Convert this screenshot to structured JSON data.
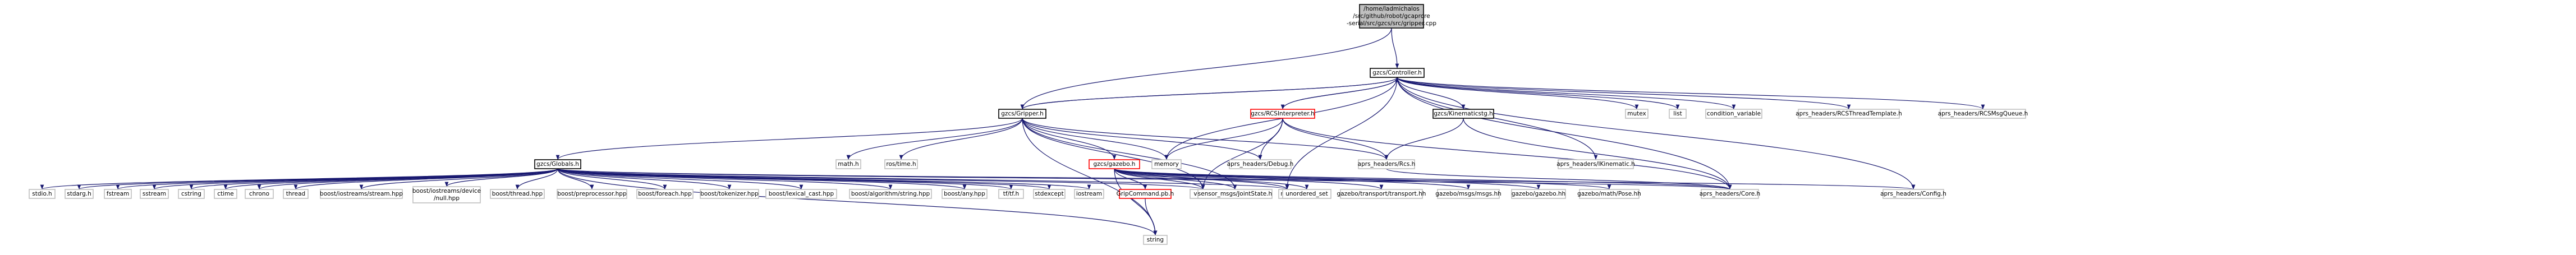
{
  "colors": {
    "edge": "#191970",
    "node_fill": "#ffffff",
    "node_border": "#bfbfbf",
    "root_fill": "#bfbfbf",
    "root_border": "#000000",
    "inner_border": "#000000",
    "missing_border": "#ff0000"
  },
  "nodes": [
    {
      "id": "root",
      "lines": [
        "/home/ladmichalos",
        "/src/github/robot/gcapro­re",
        "-serial/src/gzcs/src/gripper.cpp"
      ],
      "kind": "root"
    },
    {
      "id": "controller",
      "lines": [
        "gzcs/Controller.h"
      ],
      "kind": "inner"
    },
    {
      "id": "gripper",
      "lines": [
        "gzcs/Gripper.h"
      ],
      "kind": "inner"
    },
    {
      "id": "rcsinterpreter",
      "lines": [
        "gzcs/RCSInterpreter.h"
      ],
      "kind": "missing"
    },
    {
      "id": "kinematicsh",
      "lines": [
        "gzcs/Kinematicstg.h"
      ],
      "kind": "inner"
    },
    {
      "id": "mutex",
      "lines": [
        "mutex"
      ],
      "kind": "leaf"
    },
    {
      "id": "list",
      "lines": [
        "list"
      ],
      "kind": "leaf"
    },
    {
      "id": "condvar",
      "lines": [
        "condition_variable"
      ],
      "kind": "leaf"
    },
    {
      "id": "rcsthreadtemplate",
      "lines": [
        "aprs_headers/RCSThreadTemplate.h"
      ],
      "kind": "leaf"
    },
    {
      "id": "rcsmsgqueue",
      "lines": [
        "aprs_headers/RCSMsgQueue.h"
      ],
      "kind": "leaf"
    },
    {
      "id": "globals",
      "lines": [
        "gzcs/Globals.h"
      ],
      "kind": "inner"
    },
    {
      "id": "mathh",
      "lines": [
        "math.h"
      ],
      "kind": "leaf"
    },
    {
      "id": "rostime",
      "lines": [
        "ros/time.h"
      ],
      "kind": "leaf"
    },
    {
      "id": "memory",
      "lines": [
        "memory"
      ],
      "kind": "leaf"
    },
    {
      "id": "debug",
      "lines": [
        "aprs_headers/Debug.h"
      ],
      "kind": "leaf"
    },
    {
      "id": "gzcsgazebo",
      "lines": [
        "gzcs/gazebo.h"
      ],
      "kind": "missing"
    },
    {
      "id": "rcs",
      "lines": [
        "aprs_headers/Rcs.h"
      ],
      "kind": "leaf"
    },
    {
      "id": "ikinematic",
      "lines": [
        "aprs_headers/IKinematic.h"
      ],
      "kind": "leaf"
    },
    {
      "id": "stdio",
      "lines": [
        "stdio.h"
      ],
      "kind": "leaf"
    },
    {
      "id": "stdarg",
      "lines": [
        "stdarg.h"
      ],
      "kind": "leaf"
    },
    {
      "id": "fstream",
      "lines": [
        "fstream"
      ],
      "kind": "leaf"
    },
    {
      "id": "sstream",
      "lines": [
        "sstream"
      ],
      "kind": "leaf"
    },
    {
      "id": "cstring",
      "lines": [
        "cstring"
      ],
      "kind": "leaf"
    },
    {
      "id": "ctime",
      "lines": [
        "ctime"
      ],
      "kind": "leaf"
    },
    {
      "id": "chrono",
      "lines": [
        "chrono"
      ],
      "kind": "leaf"
    },
    {
      "id": "thread",
      "lines": [
        "thread"
      ],
      "kind": "leaf"
    },
    {
      "id": "boostiostreamsstream",
      "lines": [
        "boost/iostreams/stream.hpp"
      ],
      "kind": "leaf"
    },
    {
      "id": "boostiostreamsnull",
      "lines": [
        "boost/iostreams/device",
        "/null.hpp"
      ],
      "kind": "leaf"
    },
    {
      "id": "boostthread",
      "lines": [
        "boost/thread.hpp"
      ],
      "kind": "leaf"
    },
    {
      "id": "boostpreprocessor",
      "lines": [
        "boost/preprocessor.hpp"
      ],
      "kind": "leaf"
    },
    {
      "id": "boostforeach",
      "lines": [
        "boost/foreach.hpp"
      ],
      "kind": "leaf"
    },
    {
      "id": "boosttokenizer",
      "lines": [
        "boost/tokenizer.hpp"
      ],
      "kind": "leaf"
    },
    {
      "id": "boostlexicalcast",
      "lines": [
        "boost/lexical_cast.hpp"
      ],
      "kind": "leaf"
    },
    {
      "id": "boostalgostring",
      "lines": [
        "boost/algorithm/string.hpp"
      ],
      "kind": "leaf"
    },
    {
      "id": "boostany",
      "lines": [
        "boost/any.hpp"
      ],
      "kind": "leaf"
    },
    {
      "id": "tfh",
      "lines": [
        "tf/tf.h"
      ],
      "kind": "leaf"
    },
    {
      "id": "stdexcept",
      "lines": [
        "stdexcept"
      ],
      "kind": "leaf"
    },
    {
      "id": "iostream",
      "lines": [
        "iostream"
      ],
      "kind": "leaf"
    },
    {
      "id": "vector",
      "lines": [
        "vector"
      ],
      "kind": "leaf"
    },
    {
      "id": "sensorjoint",
      "lines": [
        "sensor_msgs/JointState.h"
      ],
      "kind": "leaf"
    },
    {
      "id": "map",
      "lines": [
        "map"
      ],
      "kind": "leaf"
    },
    {
      "id": "gripcommand",
      "lines": [
        "GripCommand.pb.h"
      ],
      "kind": "missing"
    },
    {
      "id": "unorderedset",
      "lines": [
        "unordered_set"
      ],
      "kind": "leaf"
    },
    {
      "id": "gazebotransport",
      "lines": [
        "gazebo/transport/transport.hh"
      ],
      "kind": "leaf"
    },
    {
      "id": "gazebomsgs",
      "lines": [
        "gazebo/msgs/msgs.hh"
      ],
      "kind": "leaf"
    },
    {
      "id": "gazebogazebo",
      "lines": [
        "gazebo/gazebo.hh"
      ],
      "kind": "leaf"
    },
    {
      "id": "gazebopose",
      "lines": [
        "gazebo/math/Pose.hh"
      ],
      "kind": "leaf"
    },
    {
      "id": "core",
      "lines": [
        "aprs_headers/Core.h"
      ],
      "kind": "leaf"
    },
    {
      "id": "config",
      "lines": [
        "aprs_headers/Config.h"
      ],
      "kind": "leaf"
    },
    {
      "id": "string",
      "lines": [
        "string"
      ],
      "kind": "leaf"
    }
  ],
  "edges": [
    [
      "root",
      "controller"
    ],
    [
      "root",
      "gripper"
    ],
    [
      "controller",
      "gripper"
    ],
    [
      "controller",
      "rcsinterpreter"
    ],
    [
      "controller",
      "kinematicsh"
    ],
    [
      "controller",
      "mutex"
    ],
    [
      "controller",
      "list"
    ],
    [
      "controller",
      "condvar"
    ],
    [
      "controller",
      "rcsthreadtemplate"
    ],
    [
      "controller",
      "rcsmsgqueue"
    ],
    [
      "controller",
      "memory"
    ],
    [
      "controller",
      "ikinematic"
    ],
    [
      "controller",
      "core"
    ],
    [
      "controller",
      "config"
    ],
    [
      "controller",
      "map"
    ],
    [
      "gripper",
      "globals"
    ],
    [
      "gripper",
      "mathh"
    ],
    [
      "gripper",
      "rostime"
    ],
    [
      "gripper",
      "memory"
    ],
    [
      "gripper",
      "debug"
    ],
    [
      "gripper",
      "gzcsgazebo"
    ],
    [
      "gripper",
      "rcs"
    ],
    [
      "gripper",
      "vector"
    ],
    [
      "gripper",
      "sensorjoint"
    ],
    [
      "gripper",
      "string"
    ],
    [
      "gripper",
      "controller"
    ],
    [
      "rcsinterpreter",
      "memory"
    ],
    [
      "rcsinterpreter",
      "debug"
    ],
    [
      "rcsinterpreter",
      "rcs"
    ],
    [
      "rcsinterpreter",
      "core"
    ],
    [
      "rcsinterpreter",
      "controller"
    ],
    [
      "rcsinterpreter",
      "vector"
    ],
    [
      "kinematicsh",
      "rcs"
    ],
    [
      "kinematicsh",
      "core"
    ],
    [
      "globals",
      "stdio"
    ],
    [
      "globals",
      "stdarg"
    ],
    [
      "globals",
      "fstream"
    ],
    [
      "globals",
      "sstream"
    ],
    [
      "globals",
      "cstring"
    ],
    [
      "globals",
      "ctime"
    ],
    [
      "globals",
      "chrono"
    ],
    [
      "globals",
      "thread"
    ],
    [
      "globals",
      "boostiostreamsstream"
    ],
    [
      "globals",
      "boostiostreamsnull"
    ],
    [
      "globals",
      "boostthread"
    ],
    [
      "globals",
      "boostpreprocessor"
    ],
    [
      "globals",
      "boostforeach"
    ],
    [
      "globals",
      "boosttokenizer"
    ],
    [
      "globals",
      "boostlexicalcast"
    ],
    [
      "globals",
      "boostalgostring"
    ],
    [
      "globals",
      "boostany"
    ],
    [
      "globals",
      "tfh"
    ],
    [
      "globals",
      "stdexcept"
    ],
    [
      "globals",
      "iostream"
    ],
    [
      "globals",
      "vector"
    ],
    [
      "globals",
      "map"
    ],
    [
      "globals",
      "core"
    ],
    [
      "globals",
      "config"
    ],
    [
      "globals",
      "string"
    ],
    [
      "gzcsgazebo",
      "gripcommand"
    ],
    [
      "gzcsgazebo",
      "unorderedset"
    ],
    [
      "gzcsgazebo",
      "gazebotransport"
    ],
    [
      "gzcsgazebo",
      "gazebomsgs"
    ],
    [
      "gzcsgazebo",
      "gazebogazebo"
    ],
    [
      "gzcsgazebo",
      "gazebopose"
    ],
    [
      "gzcsgazebo",
      "core"
    ],
    [
      "gzcsgazebo",
      "sensorjoint"
    ],
    [
      "gzcsgazebo",
      "map"
    ],
    [
      "gzcsgazebo",
      "string"
    ],
    [
      "gzcsgazebo",
      "vector"
    ],
    [
      "gripcommand",
      "string"
    ],
    [
      "rcs",
      "core"
    ]
  ]
}
